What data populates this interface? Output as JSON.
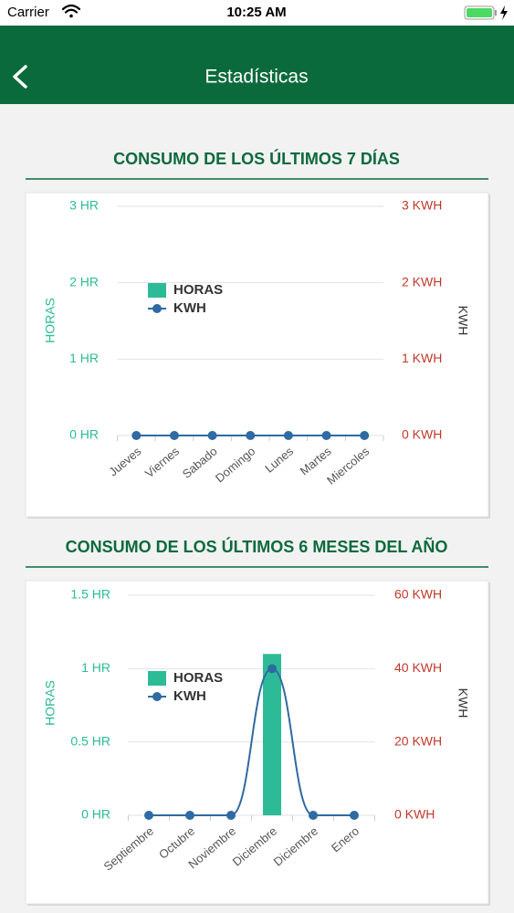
{
  "status_bar": {
    "carrier": "Carrier",
    "time": "10:25 AM"
  },
  "nav": {
    "title": "Estadísticas"
  },
  "chart_data": [
    {
      "type": "combo",
      "title": "CONSUMO DE LOS ÚLTIMOS 7 DÍAS",
      "categories": [
        "Jueves",
        "Viernes",
        "Sabado",
        "Domingo",
        "Lunes",
        "Martes",
        "Miercoles"
      ],
      "series": [
        {
          "name": "HORAS",
          "type": "bar",
          "color": "#2dbb97",
          "values": [
            0,
            0,
            0,
            0,
            0,
            0,
            0
          ]
        },
        {
          "name": "KWH",
          "type": "line",
          "axis": "y2",
          "color": "#2f6aa3",
          "smooth": true,
          "values": [
            0,
            0,
            0,
            0,
            0,
            0,
            0
          ]
        }
      ],
      "ylabel": "HORAS",
      "y2label": "KWH",
      "ylim": [
        0,
        3
      ],
      "yticks": [
        {
          "value": 0,
          "label": "0 HR"
        },
        {
          "value": 1,
          "label": "1 HR"
        },
        {
          "value": 2,
          "label": "2 HR"
        },
        {
          "value": 3,
          "label": "3 HR"
        }
      ],
      "y2lim": [
        0,
        3
      ],
      "y2ticks": [
        {
          "value": 0,
          "label": "0 KWH"
        },
        {
          "value": 1,
          "label": "1 KWH"
        },
        {
          "value": 2,
          "label": "2 KWH"
        },
        {
          "value": 3,
          "label": "3 KWH"
        }
      ],
      "grid": true,
      "legend": "upper left"
    },
    {
      "type": "combo",
      "title": "CONSUMO DE LOS ÚLTIMOS 6 MESES DEL AÑO",
      "categories": [
        "Septiembre",
        "Octubre",
        "Noviembre",
        "Diciembre",
        "Diciembre",
        "Enero"
      ],
      "series": [
        {
          "name": "HORAS",
          "type": "bar",
          "color": "#2dbb97",
          "values": [
            0,
            0,
            0,
            1.1,
            0,
            0
          ]
        },
        {
          "name": "KWH",
          "type": "line",
          "axis": "y2",
          "color": "#2f6aa3",
          "smooth": true,
          "values": [
            0,
            0,
            0,
            40,
            0,
            0
          ]
        }
      ],
      "ylabel": "HORAS",
      "y2label": "KWH",
      "ylim": [
        0,
        1.5
      ],
      "yticks": [
        {
          "value": 0,
          "label": "0 HR"
        },
        {
          "value": 0.5,
          "label": "0.5 HR"
        },
        {
          "value": 1,
          "label": "1 HR"
        },
        {
          "value": 1.5,
          "label": "1.5 HR"
        }
      ],
      "y2lim": [
        0,
        60
      ],
      "y2ticks": [
        {
          "value": 0,
          "label": "0 KWH"
        },
        {
          "value": 20,
          "label": "20 KWH"
        },
        {
          "value": 40,
          "label": "40 KWH"
        },
        {
          "value": 60,
          "label": "60 KWH"
        }
      ],
      "grid": true,
      "legend": "upper left"
    }
  ]
}
